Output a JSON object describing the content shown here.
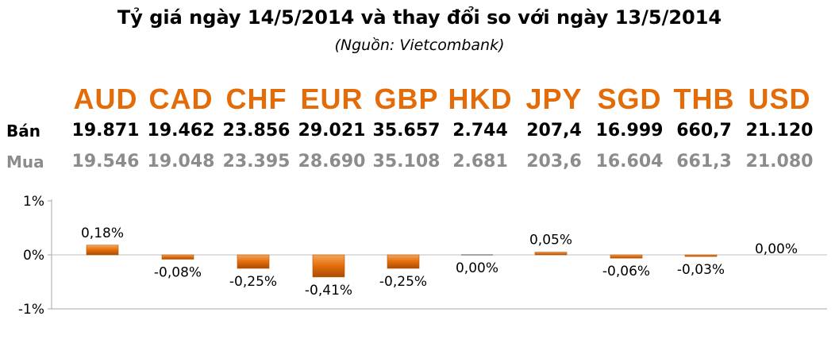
{
  "title": "Tỷ giá ngày 14/5/2014 và thay đổi so với ngày 13/5/2014",
  "subtitle": "(Nguồn: Vietcombank)",
  "row_labels": {
    "sell": "Bán",
    "buy": "Mua"
  },
  "currencies": [
    "AUD",
    "CAD",
    "CHF",
    "EUR",
    "GBP",
    "HKD",
    "JPY",
    "SGD",
    "THB",
    "USD"
  ],
  "sell": [
    "19.871",
    "19.462",
    "23.856",
    "29.021",
    "35.657",
    "2.744",
    "207,4",
    "16.999",
    "660,7",
    "21.120"
  ],
  "buy": [
    "19.546",
    "19.048",
    "23.395",
    "28.690",
    "35.108",
    "2.681",
    "203,6",
    "16.604",
    "661,3",
    "21.080"
  ],
  "colors": {
    "accent": "#e36c09",
    "bar": "#e46c0a",
    "buy_text": "#8c8c8c"
  },
  "chart_data": {
    "type": "bar",
    "categories": [
      "AUD",
      "CAD",
      "CHF",
      "EUR",
      "GBP",
      "HKD",
      "JPY",
      "SGD",
      "THB",
      "USD"
    ],
    "values": [
      0.18,
      -0.08,
      -0.25,
      -0.41,
      -0.25,
      0.0,
      0.05,
      -0.06,
      -0.03,
      0.0
    ],
    "data_labels": [
      "0,18%",
      "-0,08%",
      "-0,25%",
      "-0,41%",
      "-0,25%",
      "0,00%",
      "0,05%",
      "-0,06%",
      "-0,03%",
      "0,00%"
    ],
    "ylim": [
      -1,
      1
    ],
    "yticks": [
      "1%",
      "0%",
      "-1%"
    ],
    "grid": false
  }
}
